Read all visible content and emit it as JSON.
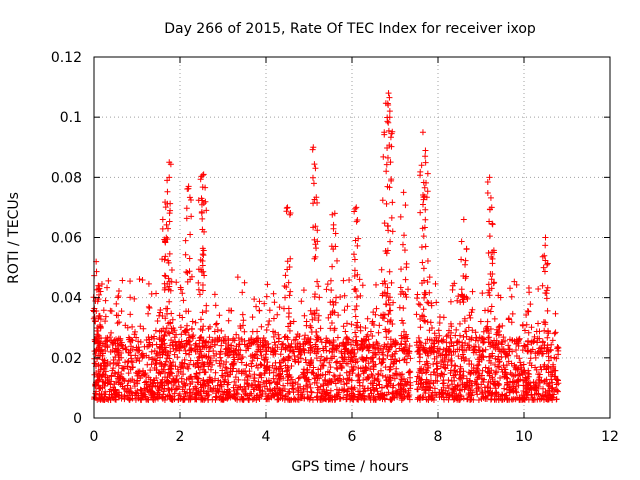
{
  "chart_data": {
    "type": "scatter",
    "title": "Day 266 of 2015, Rate Of TEC Index for receiver ixop",
    "xlabel": "GPS time / hours",
    "ylabel": "ROTI / TECUs",
    "xlim": [
      0,
      12
    ],
    "ylim": [
      0,
      0.12
    ],
    "x_ticks": [
      0,
      2,
      4,
      6,
      8,
      10,
      12
    ],
    "x_tick_labels": [
      "0",
      "2",
      "4",
      "6",
      "8",
      "10",
      "12"
    ],
    "y_ticks": [
      0,
      0.02,
      0.04,
      0.06,
      0.08,
      0.1,
      0.12
    ],
    "y_tick_labels": [
      "0",
      "0.02",
      "0.04",
      "0.06",
      "0.08",
      "0.1",
      "0.12"
    ],
    "grid": true,
    "marker": "+",
    "color": "#ff0000",
    "series": [
      {
        "name": "ROTI",
        "x_range": [
          0,
          10.8
        ],
        "baseline_range": [
          0.006,
          0.025
        ],
        "gap_x_range": [
          7.37,
          7.5
        ],
        "peaks": [
          {
            "x": 0.05,
            "y": 0.052
          },
          {
            "x": 0.1,
            "y": 0.044
          },
          {
            "x": 1.75,
            "y": 0.085
          },
          {
            "x": 1.7,
            "y": 0.079
          },
          {
            "x": 1.6,
            "y": 0.066
          },
          {
            "x": 2.2,
            "y": 0.077
          },
          {
            "x": 2.55,
            "y": 0.081
          },
          {
            "x": 2.5,
            "y": 0.073
          },
          {
            "x": 4.5,
            "y": 0.07
          },
          {
            "x": 5.1,
            "y": 0.09
          },
          {
            "x": 5.15,
            "y": 0.083
          },
          {
            "x": 5.6,
            "y": 0.068
          },
          {
            "x": 6.1,
            "y": 0.07
          },
          {
            "x": 6.75,
            "y": 0.095
          },
          {
            "x": 6.85,
            "y": 0.108
          },
          {
            "x": 6.88,
            "y": 0.102
          },
          {
            "x": 7.2,
            "y": 0.075
          },
          {
            "x": 7.65,
            "y": 0.095
          },
          {
            "x": 7.7,
            "y": 0.087
          },
          {
            "x": 8.6,
            "y": 0.066
          },
          {
            "x": 9.2,
            "y": 0.08
          },
          {
            "x": 9.25,
            "y": 0.07
          },
          {
            "x": 10.5,
            "y": 0.06
          }
        ]
      }
    ]
  }
}
